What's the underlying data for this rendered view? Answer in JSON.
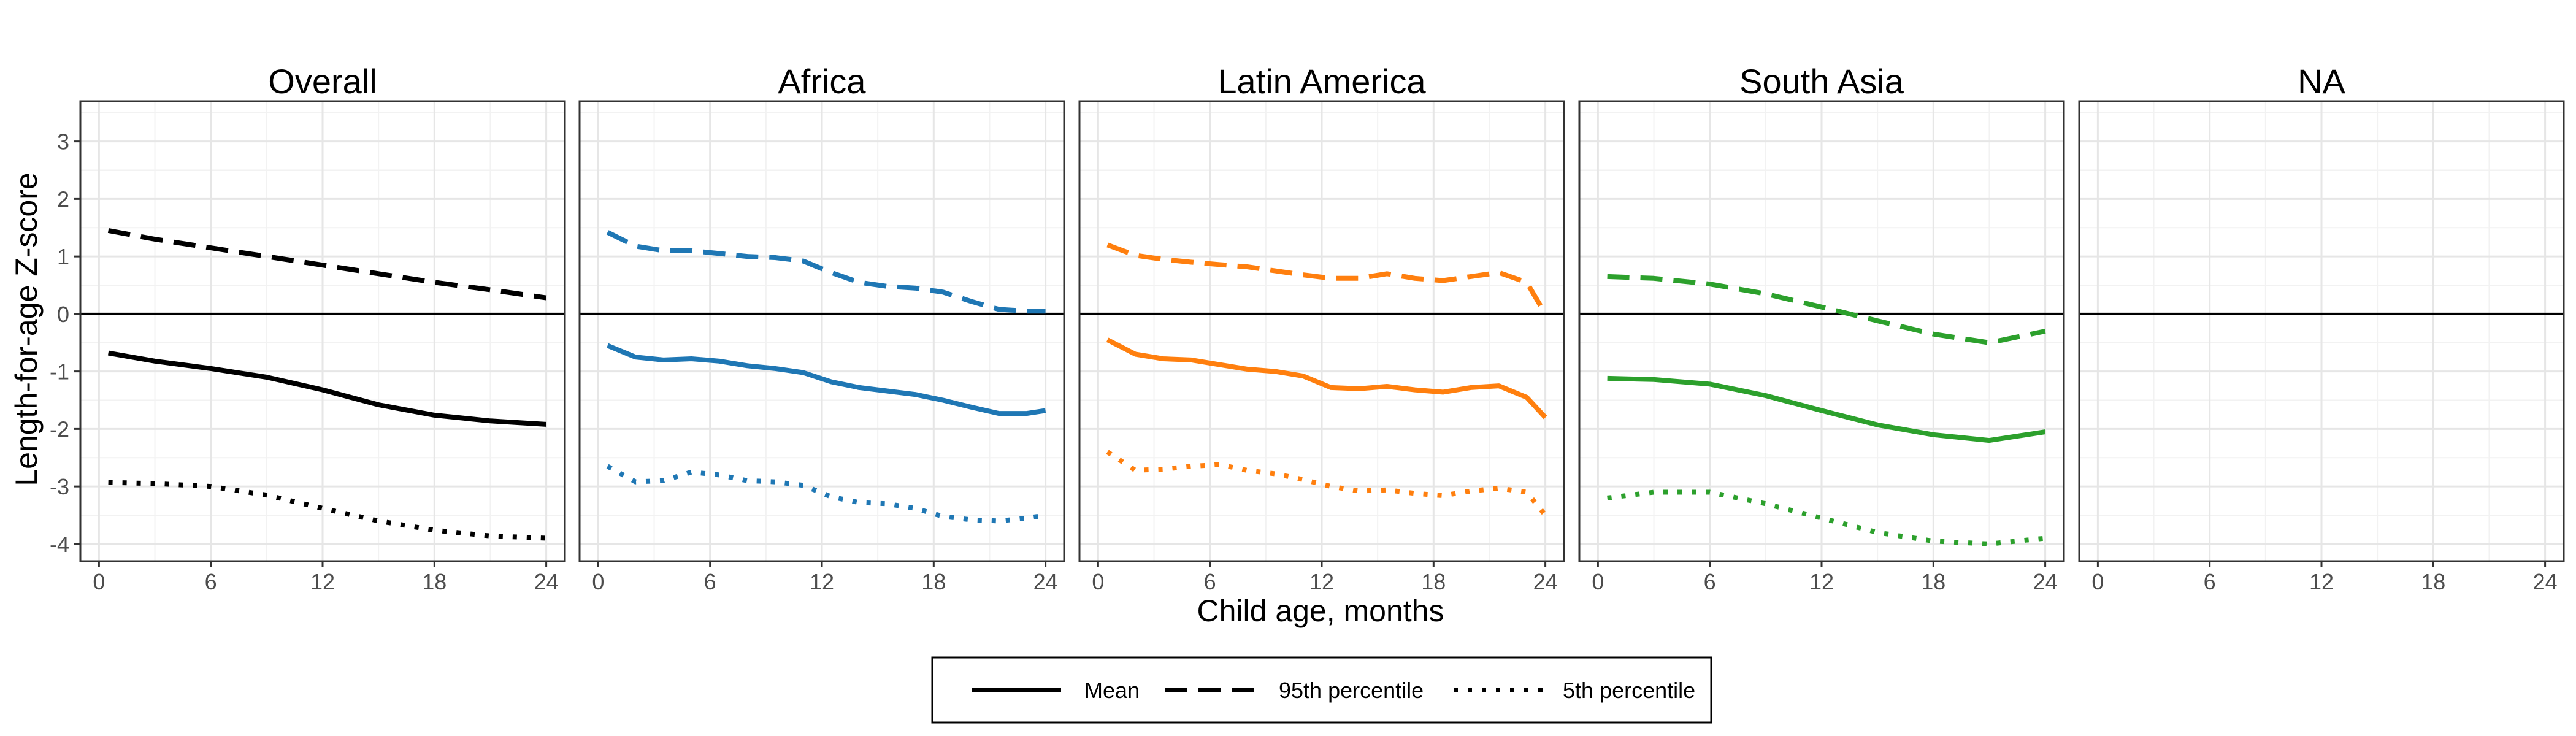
{
  "chart_data": {
    "type": "line",
    "xlabel": "Child age, months",
    "ylabel": "Length-for-age Z-score",
    "xlim": [
      -1,
      25
    ],
    "ylim": [
      -4.3,
      3.7
    ],
    "x_ticks": [
      "0",
      "6",
      "12",
      "18",
      "24"
    ],
    "y_ticks": [
      "-4",
      "-3",
      "-2",
      "-1",
      "0",
      "1",
      "2",
      "3"
    ],
    "reference_line_y": 0,
    "grid": true,
    "legend_position": "bottom",
    "legend": [
      {
        "label": "Mean",
        "dash": "solid"
      },
      {
        "label": "95th percentile",
        "dash": "dashed"
      },
      {
        "label": "5th percentile",
        "dash": "dotted"
      }
    ],
    "panels": [
      {
        "title": "Overall",
        "color": "#000000",
        "series": [
          {
            "name": "Mean",
            "dash": "solid",
            "x": [
              0.5,
              3,
              6,
              9,
              12,
              15,
              18,
              21,
              24
            ],
            "y": [
              -0.68,
              -0.82,
              -0.95,
              -1.1,
              -1.32,
              -1.58,
              -1.76,
              -1.86,
              -1.92
            ]
          },
          {
            "name": "95th percentile",
            "dash": "dashed",
            "x": [
              0.5,
              3,
              6,
              9,
              12,
              15,
              18,
              21,
              24
            ],
            "y": [
              1.45,
              1.3,
              1.15,
              1.0,
              0.85,
              0.7,
              0.55,
              0.42,
              0.28
            ]
          },
          {
            "name": "5th percentile",
            "dash": "dotted",
            "x": [
              0.5,
              3,
              6,
              9,
              12,
              15,
              18,
              21,
              24
            ],
            "y": [
              -2.93,
              -2.95,
              -3.0,
              -3.15,
              -3.38,
              -3.6,
              -3.76,
              -3.86,
              -3.9
            ]
          }
        ]
      },
      {
        "title": "Africa",
        "color": "#1f77b4",
        "series": [
          {
            "name": "Mean",
            "dash": "solid",
            "x": [
              0.5,
              2,
              3.5,
              5,
              6.5,
              8,
              9.5,
              11,
              12.5,
              14,
              15.5,
              17,
              18.5,
              20,
              21.5,
              23,
              24
            ],
            "y": [
              -0.55,
              -0.75,
              -0.8,
              -0.78,
              -0.82,
              -0.9,
              -0.95,
              -1.02,
              -1.18,
              -1.28,
              -1.34,
              -1.4,
              -1.5,
              -1.62,
              -1.73,
              -1.73,
              -1.68
            ]
          },
          {
            "name": "95th percentile",
            "dash": "dashed",
            "x": [
              0.5,
              2,
              3.5,
              5,
              6.5,
              8,
              9.5,
              11,
              12.5,
              14,
              15.5,
              17,
              18.5,
              20,
              21.5,
              23,
              24
            ],
            "y": [
              1.42,
              1.18,
              1.1,
              1.1,
              1.05,
              1.0,
              0.98,
              0.92,
              0.72,
              0.55,
              0.48,
              0.45,
              0.38,
              0.22,
              0.08,
              0.05,
              0.05
            ]
          },
          {
            "name": "5th percentile",
            "dash": "dotted",
            "x": [
              0.5,
              2,
              3.5,
              5,
              6.5,
              8,
              9.5,
              11,
              12.5,
              14,
              15.5,
              17,
              18.5,
              20,
              21.5,
              23,
              24
            ],
            "y": [
              -2.65,
              -2.92,
              -2.9,
              -2.75,
              -2.8,
              -2.9,
              -2.92,
              -2.98,
              -3.18,
              -3.28,
              -3.3,
              -3.38,
              -3.52,
              -3.58,
              -3.6,
              -3.55,
              -3.5
            ]
          }
        ]
      },
      {
        "title": "Latin America",
        "color": "#ff7f0e",
        "series": [
          {
            "name": "Mean",
            "dash": "solid",
            "x": [
              0.5,
              2,
              3.5,
              5,
              6.5,
              8,
              9.5,
              11,
              12.5,
              14,
              15.5,
              17,
              18.5,
              20,
              21.5,
              23,
              24
            ],
            "y": [
              -0.45,
              -0.7,
              -0.78,
              -0.8,
              -0.88,
              -0.96,
              -1.0,
              -1.08,
              -1.28,
              -1.3,
              -1.26,
              -1.32,
              -1.36,
              -1.28,
              -1.25,
              -1.45,
              -1.8
            ]
          },
          {
            "name": "95th percentile",
            "dash": "dashed",
            "x": [
              0.5,
              2,
              3.5,
              5,
              6.5,
              8,
              9.5,
              11,
              12.5,
              14,
              15.5,
              17,
              18.5,
              20,
              21.5,
              23,
              24
            ],
            "y": [
              1.2,
              1.02,
              0.95,
              0.9,
              0.86,
              0.82,
              0.75,
              0.68,
              0.62,
              0.62,
              0.7,
              0.62,
              0.58,
              0.65,
              0.72,
              0.55,
              0.0
            ]
          },
          {
            "name": "5th percentile",
            "dash": "dotted",
            "x": [
              0.5,
              2,
              3.5,
              5,
              6.5,
              8,
              9.5,
              11,
              12.5,
              14,
              15.5,
              17,
              18.5,
              20,
              21.5,
              23,
              24
            ],
            "y": [
              -2.4,
              -2.72,
              -2.7,
              -2.65,
              -2.62,
              -2.72,
              -2.78,
              -2.88,
              -3.0,
              -3.08,
              -3.06,
              -3.12,
              -3.16,
              -3.08,
              -3.03,
              -3.1,
              -3.5
            ]
          }
        ]
      },
      {
        "title": "South Asia",
        "color": "#2ca02c",
        "series": [
          {
            "name": "Mean",
            "dash": "solid",
            "x": [
              0.5,
              3,
              6,
              9,
              12,
              15,
              18,
              21,
              24
            ],
            "y": [
              -1.12,
              -1.14,
              -1.22,
              -1.42,
              -1.68,
              -1.93,
              -2.1,
              -2.2,
              -2.05
            ]
          },
          {
            "name": "95th percentile",
            "dash": "dashed",
            "x": [
              0.5,
              3,
              6,
              9,
              12,
              15,
              18,
              21,
              24
            ],
            "y": [
              0.65,
              0.62,
              0.52,
              0.35,
              0.12,
              -0.12,
              -0.35,
              -0.5,
              -0.3
            ]
          },
          {
            "name": "5th percentile",
            "dash": "dotted",
            "x": [
              0.5,
              3,
              6,
              9,
              12,
              15,
              18,
              21,
              24
            ],
            "y": [
              -3.2,
              -3.1,
              -3.1,
              -3.3,
              -3.55,
              -3.8,
              -3.95,
              -4.0,
              -3.9
            ]
          }
        ]
      },
      {
        "title": "NA",
        "color": "#000000",
        "series": []
      }
    ]
  }
}
